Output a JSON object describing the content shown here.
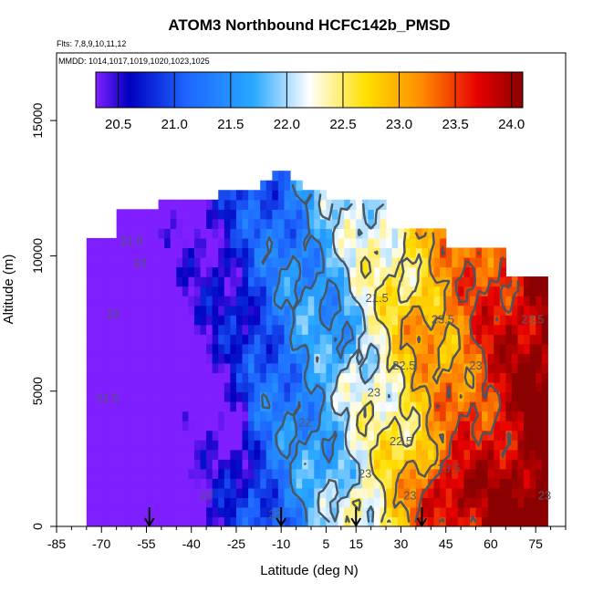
{
  "chart_data": {
    "type": "heatmap",
    "title": "ATOM3 Northbound HCFC142b_PMSD",
    "subtitle_flights": "Flts: 7,8,9,10,11,12",
    "subtitle_dates": "MMDD: 1014,1017,1019,1020,1023,1025",
    "xlabel": "Latitude (deg N)",
    "ylabel": "Altitude (m)",
    "xlim": [
      -85,
      85
    ],
    "ylim": [
      0,
      17500
    ],
    "x_ticks": [
      "-85",
      "-70",
      "-55",
      "-40",
      "-25",
      "-10",
      "5",
      "15",
      "30",
      "45",
      "60",
      "75"
    ],
    "x_tick_values": [
      -85,
      -70,
      -55,
      -40,
      -25,
      -10,
      5,
      15,
      30,
      45,
      60,
      75
    ],
    "y_ticks": [
      "0",
      "5000",
      "10000",
      "15000"
    ],
    "y_tick_values": [
      0,
      5000,
      10000,
      15000
    ],
    "colorbar": {
      "range": [
        20.3,
        24.1
      ],
      "ticks": [
        "20.5",
        "21.0",
        "21.5",
        "22.0",
        "22.5",
        "23.0",
        "23.5",
        "24.0"
      ],
      "tick_values": [
        20.5,
        21.0,
        21.5,
        22.0,
        22.5,
        23.0,
        23.5,
        24.0
      ],
      "colors": [
        "#7f1fff",
        "#0000c0",
        "#1e64ff",
        "#28a8ff",
        "#ffffff",
        "#ffe000",
        "#ff8c00",
        "#e60000",
        "#8b0000"
      ],
      "color_stops": [
        20.3,
        20.6,
        21.1,
        21.7,
        22.2,
        22.7,
        23.2,
        23.7,
        24.1
      ]
    },
    "contour_labels": [
      {
        "text": "21.5",
        "lat": -60,
        "alt": 10400
      },
      {
        "text": "22",
        "lat": -57,
        "alt": 9600
      },
      {
        "text": "22",
        "lat": -66,
        "alt": 7700
      },
      {
        "text": "21.5",
        "lat": -68,
        "alt": 4600
      },
      {
        "text": "22",
        "lat": -2,
        "alt": 3700
      },
      {
        "text": "22",
        "lat": -35,
        "alt": 1000
      },
      {
        "text": "22",
        "lat": -12,
        "alt": 300
      },
      {
        "text": "21.5",
        "lat": 22,
        "alt": 8300
      },
      {
        "text": "23",
        "lat": 21,
        "alt": 4800
      },
      {
        "text": "22.5",
        "lat": 31,
        "alt": 5800
      },
      {
        "text": "22.5",
        "lat": 30,
        "alt": 3000
      },
      {
        "text": "23",
        "lat": 18,
        "alt": 1800
      },
      {
        "text": "23",
        "lat": 33,
        "alt": 1000
      },
      {
        "text": "23.5",
        "lat": 46,
        "alt": 2000
      },
      {
        "text": "23.5",
        "lat": 44,
        "alt": 7500
      },
      {
        "text": "23",
        "lat": 55,
        "alt": 5800
      },
      {
        "text": "23.5",
        "lat": 74,
        "alt": 7500
      },
      {
        "text": "23",
        "lat": 78,
        "alt": 1000
      }
    ],
    "arrow_markers_lat": [
      -54,
      -10,
      15,
      37
    ],
    "grid": false,
    "legend": "colorbar top"
  }
}
